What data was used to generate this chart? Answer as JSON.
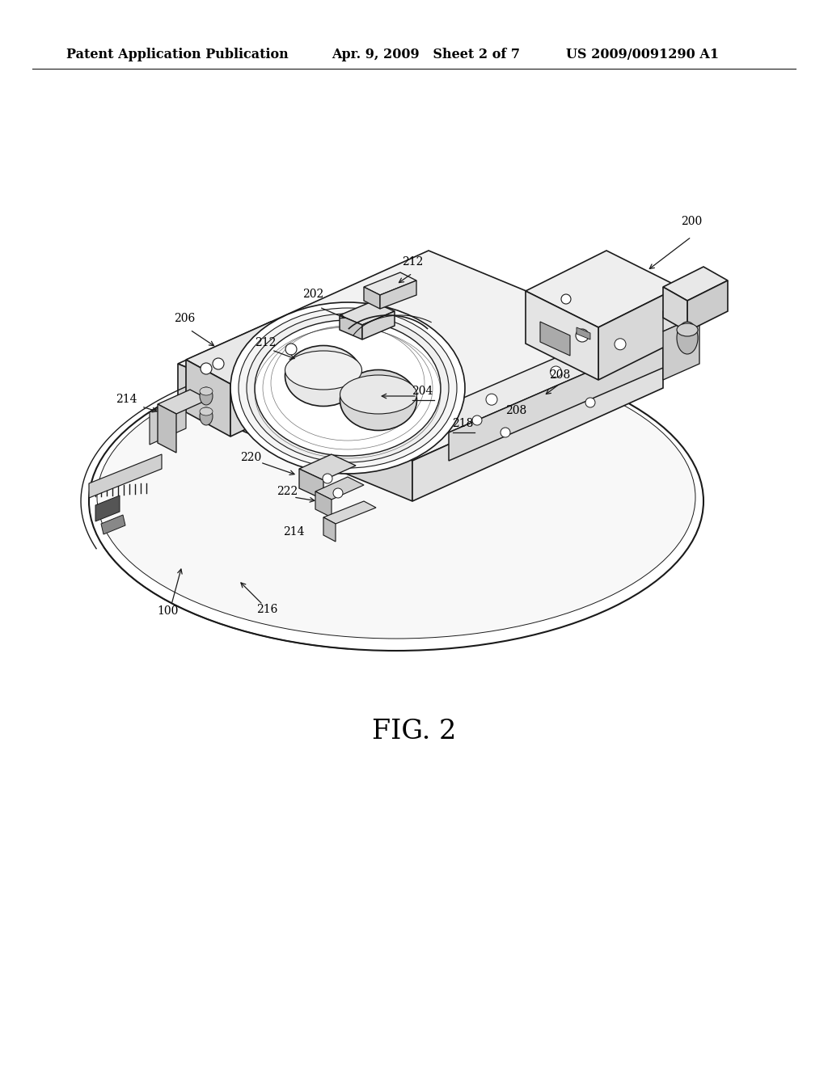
{
  "background_color": "#ffffff",
  "header_left": "Patent Application Publication",
  "header_center": "Apr. 9, 2009   Sheet 2 of 7",
  "header_right": "US 2009/0091290 A1",
  "fig_label": "FIG. 2",
  "line_color": "#1a1a1a",
  "line_width": 1.2,
  "label_fontsize": 10,
  "fig_label_fontsize": 24,
  "header_fontsize": 11.5
}
